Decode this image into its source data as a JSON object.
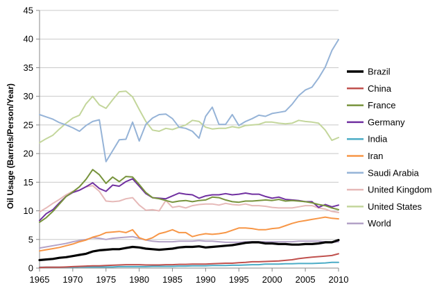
{
  "chart_data": {
    "type": "line",
    "title": "",
    "xlabel": "",
    "ylabel": "Oil Usage (Barrels/Person/Year)",
    "xlim": [
      1965,
      2010
    ],
    "ylim": [
      0,
      45
    ],
    "xticks": [
      1965,
      1970,
      1975,
      1980,
      1985,
      1990,
      1995,
      2000,
      2005,
      2010
    ],
    "yticks": [
      0,
      5,
      10,
      15,
      20,
      25,
      30,
      35,
      40,
      45
    ],
    "grid": "horizontal",
    "legend": "right",
    "x": [
      1965,
      1966,
      1967,
      1968,
      1969,
      1970,
      1971,
      1972,
      1973,
      1974,
      1975,
      1976,
      1977,
      1978,
      1979,
      1980,
      1981,
      1982,
      1983,
      1984,
      1985,
      1986,
      1987,
      1988,
      1989,
      1990,
      1991,
      1992,
      1993,
      1994,
      1995,
      1996,
      1997,
      1998,
      1999,
      2000,
      2001,
      2002,
      2003,
      2004,
      2005,
      2006,
      2007,
      2008,
      2009,
      2010
    ],
    "series": [
      {
        "name": "Brazil",
        "color": "#000000",
        "width": 3.2,
        "values": [
          1.4,
          1.5,
          1.6,
          1.8,
          1.9,
          2.1,
          2.3,
          2.5,
          2.9,
          3.1,
          3.2,
          3.3,
          3.3,
          3.5,
          3.7,
          3.6,
          3.4,
          3.3,
          3.2,
          3.3,
          3.4,
          3.6,
          3.7,
          3.7,
          3.8,
          3.6,
          3.7,
          3.8,
          3.9,
          4.0,
          4.2,
          4.4,
          4.5,
          4.5,
          4.3,
          4.3,
          4.2,
          4.2,
          4.1,
          4.1,
          4.2,
          4.2,
          4.3,
          4.5,
          4.5,
          4.9
        ]
      },
      {
        "name": "China",
        "color": "#c0504d",
        "width": 2,
        "values": [
          0.1,
          0.15,
          0.15,
          0.15,
          0.2,
          0.25,
          0.3,
          0.35,
          0.4,
          0.4,
          0.45,
          0.5,
          0.55,
          0.6,
          0.6,
          0.6,
          0.55,
          0.55,
          0.55,
          0.6,
          0.6,
          0.65,
          0.65,
          0.7,
          0.7,
          0.7,
          0.75,
          0.8,
          0.85,
          0.85,
          0.95,
          1.0,
          1.1,
          1.1,
          1.15,
          1.2,
          1.25,
          1.35,
          1.45,
          1.65,
          1.8,
          1.9,
          2.0,
          2.1,
          2.2,
          2.5
        ]
      },
      {
        "name": "France",
        "color": "#77933c",
        "width": 2,
        "values": [
          8.0,
          8.8,
          9.9,
          11.2,
          12.5,
          13.3,
          14.2,
          15.5,
          17.2,
          16.3,
          14.8,
          15.9,
          15.1,
          16.0,
          15.9,
          14.6,
          13.2,
          12.3,
          12.1,
          11.8,
          11.5,
          11.7,
          11.8,
          11.6,
          11.8,
          11.9,
          12.4,
          12.3,
          11.9,
          11.6,
          11.5,
          11.7,
          11.7,
          11.8,
          11.9,
          11.8,
          12.0,
          11.7,
          11.8,
          11.7,
          11.6,
          11.4,
          11.1,
          10.9,
          10.5,
          10.2
        ]
      },
      {
        "name": "Germany",
        "color": "#7030a0",
        "width": 2,
        "values": [
          8.3,
          9.5,
          10.2,
          11.4,
          12.5,
          13.2,
          13.6,
          14.2,
          14.9,
          13.9,
          13.4,
          14.5,
          14.3,
          15.1,
          15.6,
          14.3,
          13.0,
          12.3,
          12.2,
          12.1,
          12.6,
          13.1,
          12.9,
          12.8,
          12.2,
          12.6,
          12.8,
          12.8,
          13.0,
          12.8,
          12.9,
          13.1,
          12.9,
          12.9,
          12.5,
          12.2,
          12.4,
          12.0,
          11.9,
          11.8,
          11.6,
          11.6,
          10.6,
          11.1,
          10.7,
          11.0
        ]
      },
      {
        "name": "India",
        "color": "#4bacc6",
        "width": 2,
        "values": [
          0.15,
          0.15,
          0.15,
          0.15,
          0.15,
          0.15,
          0.2,
          0.2,
          0.2,
          0.2,
          0.2,
          0.2,
          0.25,
          0.25,
          0.25,
          0.25,
          0.25,
          0.3,
          0.3,
          0.3,
          0.3,
          0.35,
          0.35,
          0.4,
          0.4,
          0.4,
          0.45,
          0.45,
          0.45,
          0.5,
          0.5,
          0.55,
          0.6,
          0.6,
          0.7,
          0.7,
          0.7,
          0.75,
          0.75,
          0.8,
          0.8,
          0.8,
          0.85,
          0.9,
          1.0,
          1.0
        ]
      },
      {
        "name": "Iran",
        "color": "#f79646",
        "width": 2,
        "values": [
          3.0,
          3.2,
          3.4,
          3.6,
          3.9,
          4.2,
          4.6,
          4.9,
          5.4,
          5.7,
          6.2,
          6.3,
          6.4,
          6.2,
          6.7,
          5.3,
          4.9,
          5.3,
          6.0,
          6.3,
          6.7,
          6.2,
          6.2,
          5.5,
          5.8,
          6.0,
          5.9,
          6.0,
          6.2,
          6.6,
          7.0,
          7.0,
          6.9,
          6.7,
          6.7,
          6.9,
          7.0,
          7.4,
          7.8,
          8.1,
          8.3,
          8.5,
          8.7,
          8.9,
          8.7,
          8.6
        ]
      },
      {
        "name": "Saudi Arabia",
        "color": "#95b3d7",
        "width": 2,
        "values": [
          26.8,
          26.4,
          26.0,
          25.4,
          25.0,
          24.5,
          23.9,
          24.9,
          25.6,
          25.9,
          18.6,
          20.5,
          22.4,
          22.5,
          25.5,
          22.2,
          25.1,
          26.2,
          26.8,
          26.9,
          26.1,
          24.6,
          24.4,
          23.9,
          22.7,
          26.5,
          28.1,
          25.1,
          25.1,
          26.8,
          24.9,
          25.6,
          26.1,
          26.7,
          26.5,
          27.0,
          27.2,
          27.4,
          28.6,
          30.1,
          31.1,
          31.6,
          33.2,
          35.1,
          38.0,
          39.9
        ]
      },
      {
        "name": "United Kingdom",
        "color": "#e6b9b8",
        "width": 2,
        "values": [
          9.8,
          10.5,
          11.3,
          12.0,
          12.8,
          13.4,
          13.6,
          14.2,
          14.4,
          13.4,
          11.7,
          11.6,
          11.7,
          12.1,
          12.3,
          11.0,
          10.1,
          10.2,
          10.0,
          11.8,
          10.6,
          10.8,
          10.5,
          10.9,
          11.1,
          11.2,
          11.2,
          11.0,
          11.3,
          11.1,
          11.0,
          11.2,
          10.9,
          10.9,
          10.8,
          10.6,
          10.5,
          10.5,
          10.5,
          10.7,
          10.9,
          10.9,
          10.5,
          10.3,
          9.9,
          9.7
        ]
      },
      {
        "name": "United States",
        "color": "#c3d69b",
        "width": 2,
        "values": [
          21.9,
          22.6,
          23.2,
          24.3,
          25.3,
          26.2,
          26.7,
          28.7,
          30.0,
          28.5,
          27.9,
          29.4,
          30.8,
          30.9,
          29.9,
          27.7,
          25.6,
          24.1,
          23.9,
          24.4,
          24.2,
          24.6,
          25.0,
          25.8,
          25.6,
          24.6,
          24.3,
          24.4,
          24.4,
          24.7,
          24.5,
          24.9,
          25.0,
          25.1,
          25.5,
          25.5,
          25.3,
          25.2,
          25.3,
          25.8,
          25.6,
          25.5,
          25.3,
          24.1,
          22.3,
          22.8
        ]
      },
      {
        "name": "World",
        "color": "#b3a2c7",
        "width": 2,
        "values": [
          3.5,
          3.7,
          3.9,
          4.1,
          4.3,
          4.6,
          4.8,
          5.0,
          5.3,
          5.2,
          5.0,
          5.2,
          5.3,
          5.4,
          5.5,
          5.2,
          4.9,
          4.7,
          4.6,
          4.6,
          4.6,
          4.7,
          4.7,
          4.7,
          4.8,
          4.7,
          4.7,
          4.6,
          4.5,
          4.5,
          4.5,
          4.6,
          4.6,
          4.6,
          4.6,
          4.6,
          4.6,
          4.6,
          4.6,
          4.7,
          4.7,
          4.7,
          4.7,
          4.6,
          4.5,
          4.6
        ]
      }
    ]
  }
}
